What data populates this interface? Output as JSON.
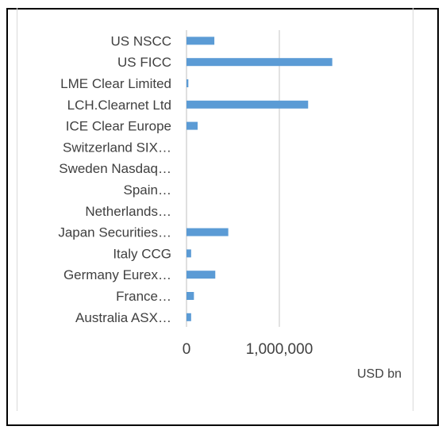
{
  "chart_data": {
    "type": "bar",
    "orientation": "horizontal",
    "categories": [
      "US NSCC",
      "US FICC",
      "LME Clear Limited",
      "LCH.Clearnet Ltd",
      "ICE Clear Europe",
      "Switzerland SIX…",
      "Sweden Nasdaq…",
      "Spain…",
      "Netherlands…",
      "Japan Securities…",
      "Italy CCG",
      "Germany Eurex…",
      "France…",
      "Australia ASX…"
    ],
    "values": [
      300000,
      1570000,
      20000,
      1310000,
      120000,
      0,
      0,
      0,
      0,
      450000,
      50000,
      310000,
      80000,
      50000
    ],
    "xlim": [
      0,
      2000000
    ],
    "xticks": [
      0,
      1000000
    ],
    "xtick_labels": [
      "0",
      "1,000,000"
    ],
    "xlabel": "USD bn",
    "grid": "vertical",
    "bar_color": "#5b9bd5"
  }
}
